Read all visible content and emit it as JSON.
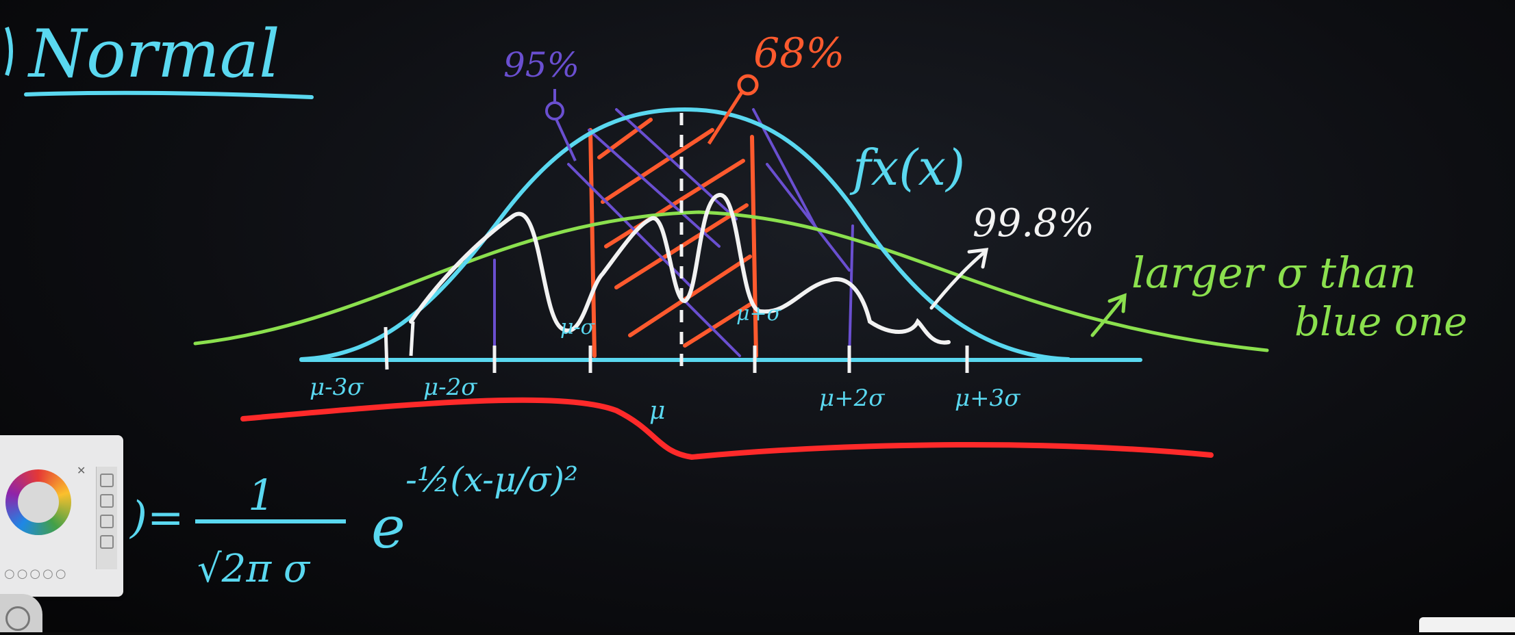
{
  "heading": "Normal",
  "labels": {
    "pct95": "95%",
    "pct68": "68%",
    "pct998": "99.8%",
    "fx": "fx(x)",
    "note_line1": "larger σ than",
    "note_line2": "blue one",
    "mu_minus_3s": "μ-3σ",
    "mu_minus_2s": "μ-2σ",
    "mu_minus_1s": "μ-σ",
    "mu": "μ",
    "mu_plus_1s": "μ+σ",
    "mu_plus_2s": "μ+2σ",
    "mu_plus_3s": "μ+3σ"
  },
  "formula": {
    "lhs_tail": ")=",
    "numerator": "1",
    "denominator": "√2π σ",
    "base": "e",
    "exponent": "-½(x-μ/σ)²"
  },
  "colors": {
    "cyan": "#5ad8f0",
    "orange": "#ff5a2e",
    "purple": "#6a4fd0",
    "green": "#8be04e",
    "white": "#f2f2f2",
    "red": "#ff2a2a"
  },
  "icons": [
    "color-palette-icon",
    "close-icon",
    "pen-tool-icon"
  ]
}
